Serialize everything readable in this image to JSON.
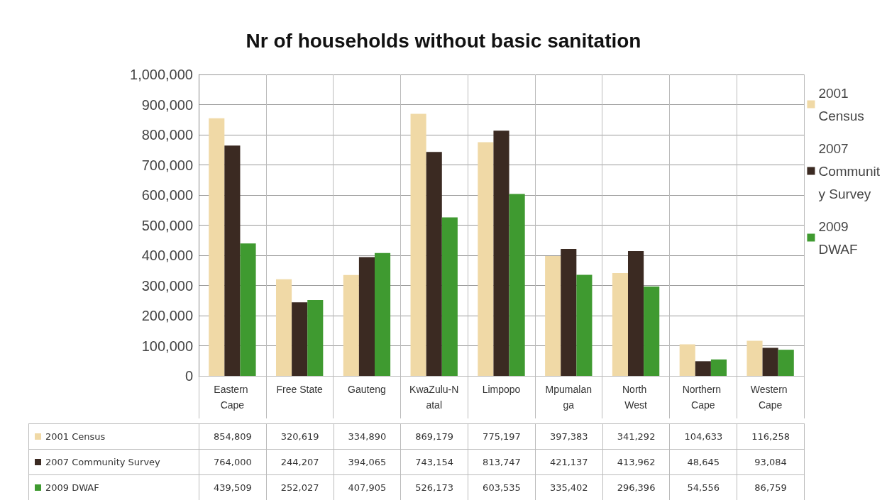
{
  "chart_data": {
    "type": "bar",
    "title": "Nr of households without basic sanitation",
    "categories": [
      "Eastern Cape",
      "Free State",
      "Gauteng",
      "KwaZulu-Natal",
      "Limpopo",
      "Mpumalanga",
      "North West",
      "Northern Cape",
      "Western Cape"
    ],
    "series": [
      {
        "name": "2001 Census",
        "color": "#f0d9a6",
        "values": [
          854809,
          320619,
          334890,
          869179,
          775197,
          397383,
          341292,
          104633,
          116258
        ],
        "value_labels": [
          "854,809",
          "320,619",
          "334,890",
          "869,179",
          "775,197",
          "397,383",
          "341,292",
          "104,633",
          "116,258"
        ]
      },
      {
        "name": "2007 Community Survey",
        "color": "#3b2a22",
        "values": [
          764000,
          244207,
          394065,
          743154,
          813747,
          421137,
          413962,
          48645,
          93084
        ],
        "value_labels": [
          "764,000",
          "244,207",
          "394,065",
          "743,154",
          "813,747",
          "421,137",
          "413,962",
          "48,645",
          "93,084"
        ]
      },
      {
        "name": "2009 DWAF",
        "color": "#3f9a30",
        "values": [
          439509,
          252027,
          407905,
          526173,
          603535,
          335402,
          296396,
          54556,
          86759
        ],
        "value_labels": [
          "439,509",
          "252,027",
          "407,905",
          "526,173",
          "603,535",
          "335,402",
          "296,396",
          "54,556",
          "86,759"
        ]
      }
    ],
    "ylim": [
      0,
      1000000
    ],
    "yticks": [
      0,
      {
        "value": 100000,
        "label": "100,000"
      },
      {
        "value": 200000,
        "label": "200,000"
      },
      {
        "value": 300000,
        "label": "300,000"
      },
      {
        "value": 400000,
        "label": "400,000"
      },
      {
        "value": 500000,
        "label": "500,000"
      },
      {
        "value": 600000,
        "label": "600,000"
      },
      {
        "value": 700000,
        "label": "700,000"
      },
      {
        "value": 800000,
        "label": "800,000"
      },
      {
        "value": 900000,
        "label": "900,000"
      },
      {
        "value": 1000000,
        "label": "1,000,000"
      }
    ],
    "grid": "y",
    "legend": "right"
  }
}
